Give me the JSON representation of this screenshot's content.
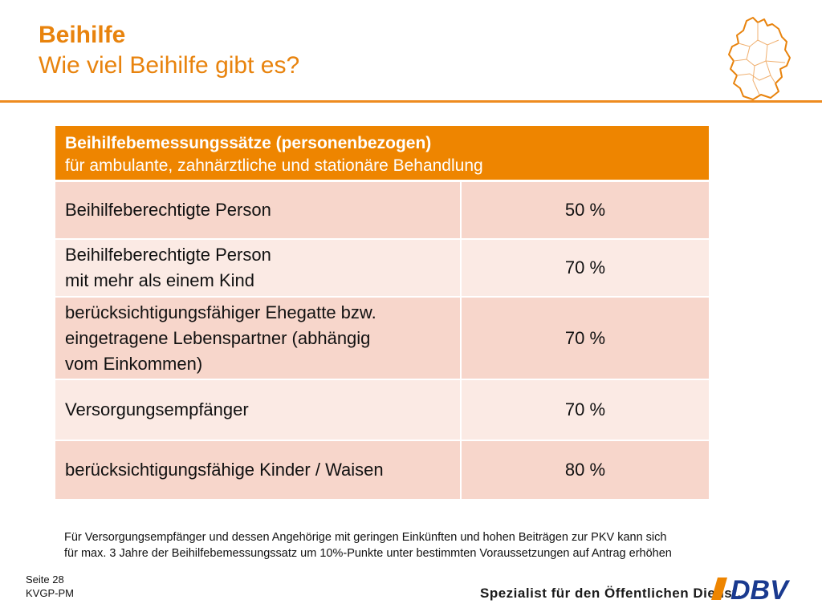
{
  "header": {
    "title": "Beihilfe",
    "subtitle": "Wie viel Beihilfe gibt es?"
  },
  "table": {
    "heading_bold": "Beihilfebemessungssätze (personenbezogen)",
    "heading_sub": "für ambulante, zahnärztliche und stationäre Behandlung",
    "rows": [
      {
        "lines": [
          "Beihilfeberechtigte Person"
        ],
        "value": "50 %"
      },
      {
        "lines": [
          "Beihilfeberechtigte Person",
          "mit mehr als einem Kind"
        ],
        "value": "70 %"
      },
      {
        "lines": [
          "berücksichtigungsfähiger Ehegatte bzw.",
          "eingetragene Lebenspartner (abhängig",
          "vom Einkommen)"
        ],
        "value": "70 %"
      },
      {
        "lines": [
          "Versorgungsempfänger"
        ],
        "value": "70 %"
      },
      {
        "lines": [
          "berücksichtigungsfähige Kinder / Waisen"
        ],
        "value": "80 %"
      }
    ]
  },
  "footnote": {
    "line1": "Für Versorgungsempfänger und dessen Angehörige mit geringen Einkünften und hohen Beiträgen zur PKV kann sich",
    "line2": "für max. 3 Jahre der Beihilfebemessungssatz um 10%-Punkte unter bestimmten Voraussetzungen auf Antrag erhöhen"
  },
  "footer": {
    "page_label": "Seite 28",
    "doc_code": "KVGP-PM",
    "tagline": "Spezialist für den Öffentlichen Dienst.",
    "logo_text": "DBV"
  },
  "colors": {
    "accent": "#ee8500",
    "row_dark": "#f7d6cb",
    "row_light": "#fbeae4"
  },
  "icons": {
    "map": "germany-map-icon"
  }
}
